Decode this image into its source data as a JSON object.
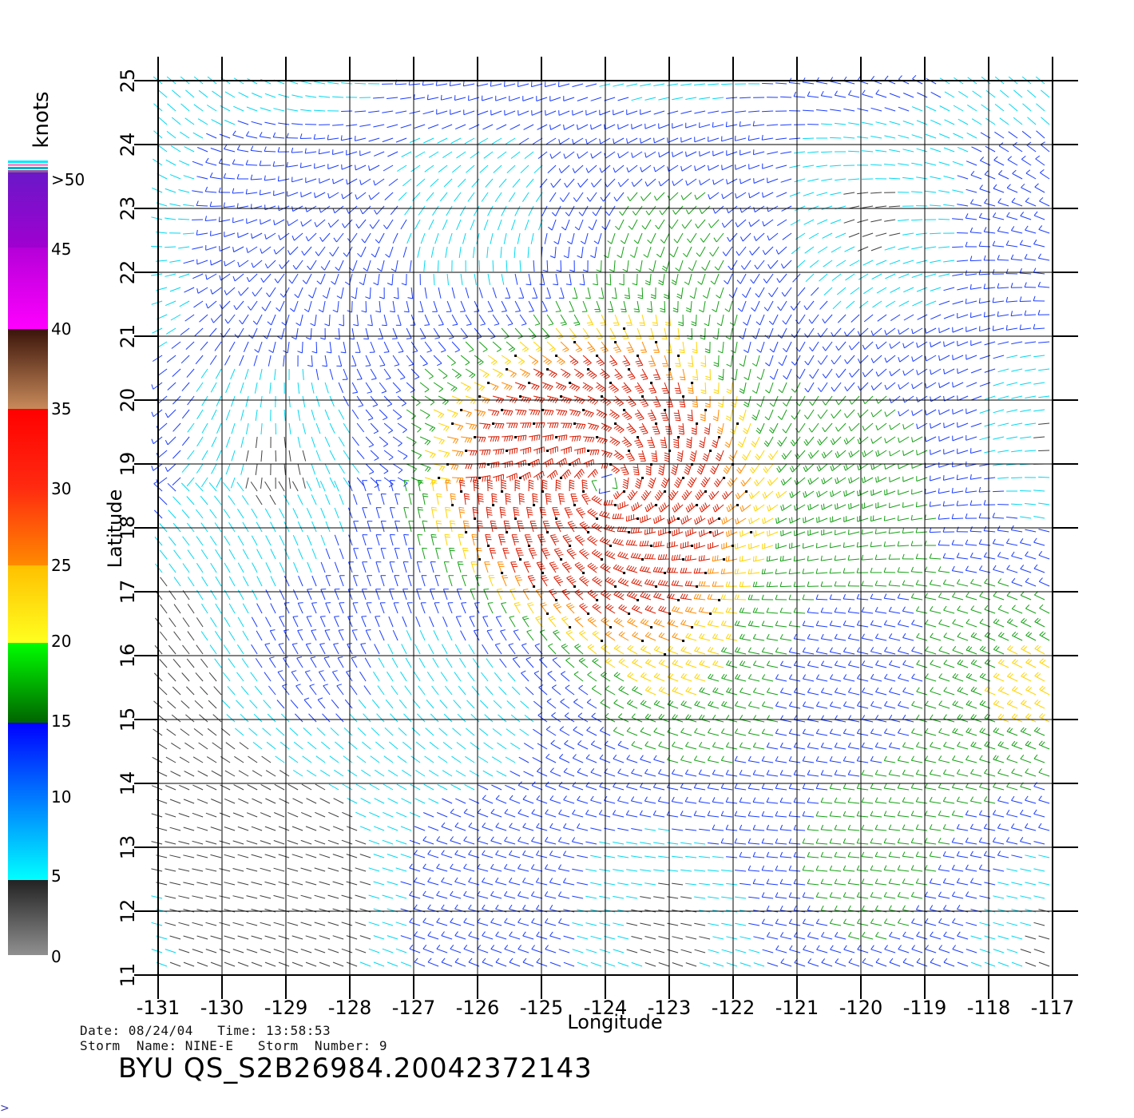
{
  "map": {
    "x_axis_label": "Longitude",
    "y_axis_label": "Latitude",
    "lon_ticks": [
      "-131",
      "-130",
      "-129",
      "-128",
      "-127",
      "-126",
      "-125",
      "-124",
      "-123",
      "-122",
      "-121",
      "-120",
      "-119",
      "-118",
      "-117"
    ],
    "lat_ticks": [
      "11",
      "12",
      "13",
      "14",
      "15",
      "16",
      "17",
      "18",
      "19",
      "20",
      "21",
      "22",
      "23",
      "24",
      "25"
    ],
    "lon_range": [
      -131,
      -117
    ],
    "lat_range": [
      11,
      25
    ],
    "grid": true,
    "storm_center": {
      "lon": -124.0,
      "lat": 18.7
    },
    "vector_field": "wind barbs, cyclonic circulation around storm center"
  },
  "legend": {
    "unit_label": "knots",
    "max_label": ">50",
    "levels": [
      {
        "value": "45",
        "color": "#9a00c8"
      },
      {
        "value": "40",
        "color": "#ff00ff"
      },
      {
        "value": "35",
        "color": "#b0744a"
      },
      {
        "value": "30",
        "color": "#ff2a1a"
      },
      {
        "value": "25",
        "color": "#ff7a00"
      },
      {
        "value": "20",
        "color": "#ffe000"
      },
      {
        "value": "15",
        "color": "#009a00"
      },
      {
        "value": "10",
        "color": "#0000ff"
      },
      {
        "value": "5",
        "color": "#00e8ff"
      },
      {
        "value": "0",
        "color": "#333333"
      }
    ]
  },
  "info": {
    "date_line": "Date: 08/24/04   Time: 13:58:53",
    "storm_line": "Storm  Name: NINE-E   Storm  Number: 9"
  },
  "title": "BYU  QS_S2B26984.20042372143",
  "corner": ">"
}
